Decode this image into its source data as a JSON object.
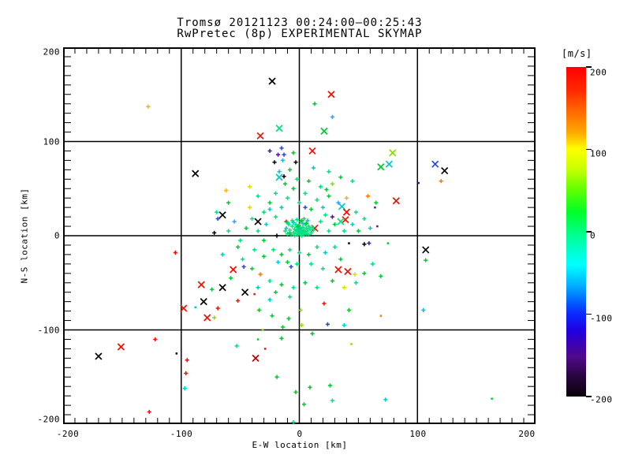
{
  "title": {
    "line1": "Tromsø 20121123 00:24:00–00:25:43",
    "line2": "RwPretec (8p) EXPERIMENTAL SKYMAP"
  },
  "axes": {
    "xlabel": "E-W location [km]",
    "ylabel": "N-S location [km]",
    "x_ticks": [
      "-200",
      "-100",
      "0",
      "100",
      "200"
    ],
    "y_ticks": [
      "200",
      "100",
      "0",
      "-100",
      "-200"
    ],
    "x_range": [
      -200,
      200
    ],
    "y_range": [
      -200,
      200
    ],
    "major_grid_km": 100,
    "minor_tick_km": 10,
    "grid": "on",
    "frame_color": "#000000",
    "background": "#ffffff"
  },
  "colorbar": {
    "unit": "[m/s]",
    "ticks": [
      "200",
      "100",
      "0",
      "-100",
      "-200"
    ],
    "tick_values": [
      200,
      100,
      0,
      -100,
      -200
    ],
    "range": [
      -200,
      200
    ],
    "gradient": [
      {
        "p": 0,
        "c": "#ff0000"
      },
      {
        "p": 7,
        "c": "#ff2800"
      },
      {
        "p": 13,
        "c": "#ff6400"
      },
      {
        "p": 20,
        "c": "#ffaa00"
      },
      {
        "p": 25,
        "c": "#ffff00"
      },
      {
        "p": 31,
        "c": "#c8ff00"
      },
      {
        "p": 37,
        "c": "#64ff00"
      },
      {
        "p": 44,
        "c": "#00ff28"
      },
      {
        "p": 50,
        "c": "#00ff82"
      },
      {
        "p": 56,
        "c": "#00ffd2"
      },
      {
        "p": 60,
        "c": "#00ffff"
      },
      {
        "p": 66,
        "c": "#00b4ff"
      },
      {
        "p": 71,
        "c": "#0064ff"
      },
      {
        "p": 75,
        "c": "#0a28ff"
      },
      {
        "p": 80,
        "c": "#2000e0"
      },
      {
        "p": 84,
        "c": "#3c00b4"
      },
      {
        "p": 88,
        "c": "#500a8c"
      },
      {
        "p": 94,
        "c": "#28053c"
      },
      {
        "p": 100,
        "c": "#0a000a"
      }
    ]
  },
  "chart_data": {
    "type": "scatter",
    "title": "Tromsø 20121123 00:24:00–00:25:43 / RwPretec (8p) EXPERIMENTAL SKYMAP",
    "xlabel": "E-W location [km]",
    "ylabel": "N-S location [km]",
    "xlim": [
      -200,
      200
    ],
    "ylim": [
      -200,
      200
    ],
    "color_unit": "m/s",
    "color_range": [
      -200,
      200
    ],
    "palette": {
      "SG": "#00e07d",
      "GR": "#00c832",
      "LG": "#8cdc00",
      "YL": "#dcdc00",
      "AM": "#ffb400",
      "OR": "#ff7800",
      "RD": "#f01000",
      "DR": "#c00000",
      "CY": "#00c8c8",
      "LB": "#32a0ff",
      "BL": "#2346e6",
      "NV": "#28288c",
      "PU": "#5a0aa0",
      "BK": "#000000"
    },
    "palette_velocity_ms": {
      "SG": 0,
      "GR": 40,
      "LG": 90,
      "YL": 110,
      "AM": 130,
      "OR": 150,
      "RD": 190,
      "DR": 200,
      "CY": -40,
      "LB": -80,
      "BL": -100,
      "NV": -140,
      "PU": -160,
      "BK": -200
    },
    "marker_legend": {
      "x": "large cross",
      "+": "small plus",
      ".": "dot"
    },
    "points": [
      [
        -128,
        137,
        "+",
        "AM"
      ],
      [
        -88,
        66,
        "x",
        "BK"
      ],
      [
        -23,
        164,
        "x",
        "BK"
      ],
      [
        27,
        150,
        "x",
        "RD"
      ],
      [
        13,
        140,
        "+",
        "GR"
      ],
      [
        28,
        126,
        "+",
        "LB"
      ],
      [
        -17,
        114,
        "x",
        "SG"
      ],
      [
        -33,
        106,
        "x",
        "RD"
      ],
      [
        21,
        111,
        "x",
        "GR"
      ],
      [
        11,
        90,
        "x",
        "RD"
      ],
      [
        -15,
        93,
        "+",
        "BL"
      ],
      [
        -25,
        90,
        "+",
        "NV"
      ],
      [
        -18,
        86,
        "+",
        "PU"
      ],
      [
        -13,
        86,
        "+",
        "BL"
      ],
      [
        -5,
        88,
        "+",
        "GR"
      ],
      [
        -21,
        78,
        "+",
        "BK"
      ],
      [
        -14,
        80,
        "+",
        "CY"
      ],
      [
        -3,
        78,
        "+",
        "BK"
      ],
      [
        -17,
        68,
        "+",
        "CY"
      ],
      [
        79,
        88,
        "x",
        "LG"
      ],
      [
        69,
        73,
        "x",
        "GR"
      ],
      [
        76,
        76,
        "x",
        "CY"
      ],
      [
        115,
        76,
        "x",
        "BL"
      ],
      [
        123,
        69,
        "x",
        "BK"
      ],
      [
        -69,
        18,
        "+",
        "BL"
      ],
      [
        -72,
        3,
        "+",
        "BK"
      ],
      [
        -105,
        -18,
        "+",
        "RD"
      ],
      [
        -83,
        -52,
        "x",
        "RD"
      ],
      [
        -74,
        -57,
        "+",
        "GR"
      ],
      [
        101,
        56,
        ".",
        "PU"
      ],
      [
        120,
        58,
        "+",
        "OR"
      ],
      [
        82,
        37,
        "x",
        "RD"
      ],
      [
        75,
        -8,
        ".",
        "GR"
      ],
      [
        107,
        -15,
        "x",
        "BK"
      ],
      [
        107,
        -26,
        "+",
        "GR"
      ],
      [
        69,
        -43,
        "+",
        "GR"
      ],
      [
        -81,
        -70,
        "x",
        "BK"
      ],
      [
        -98,
        -77,
        "x",
        "RD"
      ],
      [
        -88,
        -76,
        ".",
        "CY"
      ],
      [
        -69,
        -77,
        "+",
        "RD"
      ],
      [
        -78,
        -87,
        "x",
        "RD"
      ],
      [
        -72,
        -87,
        "+",
        "LG"
      ],
      [
        -122,
        -110,
        "+",
        "RD"
      ],
      [
        -151,
        -118,
        "x",
        "RD"
      ],
      [
        -170,
        -128,
        "x",
        "BK"
      ],
      [
        -104,
        -125,
        ".",
        "BK"
      ],
      [
        -95,
        -132,
        "+",
        "RD"
      ],
      [
        -96,
        -146,
        "+",
        "RD"
      ],
      [
        -97,
        -162,
        "+",
        "CY"
      ],
      [
        -127,
        -187,
        "+",
        "RD"
      ],
      [
        -52,
        -69,
        "+",
        "RD"
      ],
      [
        -25,
        -68,
        "+",
        "CY"
      ],
      [
        -34,
        -79,
        "+",
        "GR"
      ],
      [
        -23,
        -85,
        "+",
        "GR"
      ],
      [
        -9,
        -88,
        "+",
        "GR"
      ],
      [
        1,
        -79,
        "+",
        "LG"
      ],
      [
        21,
        -72,
        "+",
        "RD"
      ],
      [
        42,
        -79,
        "+",
        "GR"
      ],
      [
        2,
        -95,
        "+",
        "LG"
      ],
      [
        24,
        -94,
        "+",
        "BL"
      ],
      [
        38,
        -95,
        "+",
        "CY"
      ],
      [
        -14,
        -97,
        "+",
        "GR"
      ],
      [
        -31,
        -100,
        ".",
        "LG"
      ],
      [
        11,
        -104,
        "+",
        "GR"
      ],
      [
        -15,
        -109,
        "+",
        "GR"
      ],
      [
        -35,
        -110,
        ".",
        "GR"
      ],
      [
        -53,
        -117,
        "+",
        "SG"
      ],
      [
        -29,
        -120,
        ".",
        "RD"
      ],
      [
        44,
        -115,
        ".",
        "LG"
      ],
      [
        -37,
        -130,
        "x",
        "DR"
      ],
      [
        -19,
        -150,
        "+",
        "GR"
      ],
      [
        -3,
        -166,
        "+",
        "GR"
      ],
      [
        9,
        -161,
        "+",
        "GR"
      ],
      [
        26,
        -159,
        "+",
        "GR"
      ],
      [
        28,
        -175,
        "+",
        "SG"
      ],
      [
        4,
        -179,
        "+",
        "GR"
      ],
      [
        -5,
        -198,
        "+",
        "SG"
      ],
      [
        69,
        -85,
        ".",
        "OR"
      ],
      [
        105,
        -79,
        "+",
        "CY"
      ],
      [
        73,
        -174,
        "+",
        "CY"
      ],
      [
        163,
        -173,
        ".",
        "GR"
      ],
      [
        -17,
        62,
        "x",
        "CY"
      ],
      [
        -13,
        63,
        "+",
        "BK"
      ],
      [
        -42,
        52,
        "+",
        "YL"
      ],
      [
        23,
        49,
        "+",
        "GR"
      ],
      [
        5,
        30,
        "+",
        "BL"
      ],
      [
        36,
        31,
        "x",
        "CY"
      ],
      [
        40,
        25,
        "x",
        "RD"
      ],
      [
        39,
        17,
        "x",
        "RD"
      ],
      [
        35,
        15,
        "x",
        "SG"
      ],
      [
        13,
        8,
        "x",
        "RD"
      ],
      [
        -35,
        15,
        "x",
        "BK"
      ],
      [
        -11,
        15,
        "+",
        "RD"
      ],
      [
        -19,
        0,
        "+",
        "BK"
      ],
      [
        64,
        30,
        ".",
        "NV"
      ],
      [
        59,
        -8,
        "+",
        "NV"
      ],
      [
        42,
        -8,
        ".",
        "BK"
      ],
      [
        55,
        -9,
        "+",
        "BK"
      ],
      [
        33,
        -36,
        "x",
        "RD"
      ],
      [
        41,
        -38,
        "x",
        "RD"
      ],
      [
        47,
        -41,
        "+",
        "YL"
      ],
      [
        -56,
        -36,
        "x",
        "RD"
      ],
      [
        -65,
        -55,
        "x",
        "BK"
      ],
      [
        -46,
        -60,
        "x",
        "BK"
      ],
      [
        -38,
        -62,
        ".",
        "RD"
      ],
      [
        -33,
        -41,
        "+",
        "OR"
      ],
      [
        -7,
        -33,
        "+",
        "BL"
      ],
      [
        -47,
        -33,
        "+",
        "BL"
      ],
      [
        28,
        20,
        "+",
        "PU"
      ],
      [
        66,
        10,
        ".",
        "PU"
      ],
      [
        -65,
        22,
        "x",
        "BK"
      ],
      [
        -10,
        2,
        "+",
        "SG"
      ],
      [
        -8,
        6,
        "+",
        "SG"
      ],
      [
        -7,
        1,
        "+",
        "SG"
      ],
      [
        -6,
        10,
        "+",
        "SG"
      ],
      [
        -5,
        3,
        "+",
        "SG"
      ],
      [
        -4,
        7,
        "+",
        "SG"
      ],
      [
        -4,
        0,
        "+",
        "SG"
      ],
      [
        -3,
        12,
        "+",
        "SG"
      ],
      [
        -3,
        5,
        "+",
        "SG"
      ],
      [
        -2,
        2,
        "+",
        "SG"
      ],
      [
        -2,
        9,
        "+",
        "SG"
      ],
      [
        -1,
        6,
        "+",
        "SG"
      ],
      [
        -1,
        1,
        "+",
        "SG"
      ],
      [
        0,
        4,
        "+",
        "SG"
      ],
      [
        0,
        11,
        "+",
        "SG"
      ],
      [
        1,
        2,
        "+",
        "SG"
      ],
      [
        1,
        8,
        "+",
        "SG"
      ],
      [
        2,
        5,
        "+",
        "SG"
      ],
      [
        2,
        0,
        "+",
        "SG"
      ],
      [
        3,
        9,
        "+",
        "SG"
      ],
      [
        3,
        3,
        "+",
        "SG"
      ],
      [
        4,
        6,
        "+",
        "SG"
      ],
      [
        4,
        1,
        "+",
        "SG"
      ],
      [
        5,
        12,
        "+",
        "SG"
      ],
      [
        5,
        4,
        "+",
        "SG"
      ],
      [
        6,
        8,
        "+",
        "SG"
      ],
      [
        6,
        2,
        "+",
        "SG"
      ],
      [
        7,
        5,
        "+",
        "SG"
      ],
      [
        8,
        10,
        "+",
        "SG"
      ],
      [
        8,
        1,
        "+",
        "SG"
      ],
      [
        9,
        7,
        "+",
        "SG"
      ],
      [
        -9,
        12,
        "+",
        "SG"
      ],
      [
        -6,
        16,
        "+",
        "SG"
      ],
      [
        -2,
        17,
        "+",
        "SG"
      ],
      [
        1,
        15,
        "+",
        "SG"
      ],
      [
        4,
        18,
        "+",
        "SG"
      ],
      [
        -11,
        8,
        "+",
        "CY"
      ],
      [
        -5,
        14,
        "+",
        "CY"
      ],
      [
        0,
        7,
        "+",
        "CY"
      ],
      [
        3,
        13,
        "+",
        "CY"
      ],
      [
        7,
        16,
        "+",
        "CY"
      ],
      [
        -8,
        3,
        "+",
        "GR"
      ],
      [
        -1,
        10,
        "+",
        "GR"
      ],
      [
        2,
        16,
        "+",
        "GR"
      ],
      [
        6,
        13,
        "+",
        "GR"
      ],
      [
        10,
        3,
        "+",
        "SG"
      ],
      [
        11,
        9,
        "+",
        "SG"
      ],
      [
        -12,
        5,
        "+",
        "SG"
      ],
      [
        -10,
        14,
        "+",
        "SG"
      ],
      [
        12,
        6,
        "+",
        "SG"
      ],
      [
        -30,
        25,
        "+",
        "SG"
      ],
      [
        -25,
        35,
        "+",
        "GR"
      ],
      [
        -20,
        45,
        "+",
        "SG"
      ],
      [
        -15,
        30,
        "+",
        "CY"
      ],
      [
        -10,
        40,
        "+",
        "SG"
      ],
      [
        -5,
        50,
        "+",
        "GR"
      ],
      [
        0,
        35,
        "+",
        "SG"
      ],
      [
        5,
        45,
        "+",
        "SG"
      ],
      [
        10,
        28,
        "+",
        "GR"
      ],
      [
        15,
        38,
        "+",
        "SG"
      ],
      [
        20,
        30,
        "+",
        "CY"
      ],
      [
        25,
        42,
        "+",
        "GR"
      ],
      [
        -35,
        5,
        "+",
        "SG"
      ],
      [
        -30,
        -5,
        "+",
        "GR"
      ],
      [
        -28,
        12,
        "+",
        "CY"
      ],
      [
        -40,
        18,
        "+",
        "SG"
      ],
      [
        -45,
        8,
        "+",
        "GR"
      ],
      [
        -50,
        -5,
        "+",
        "SG"
      ],
      [
        -38,
        -15,
        "+",
        "SG"
      ],
      [
        -30,
        -22,
        "+",
        "GR"
      ],
      [
        -22,
        -15,
        "+",
        "SG"
      ],
      [
        -15,
        -20,
        "+",
        "GR"
      ],
      [
        -8,
        -15,
        "+",
        "SG"
      ],
      [
        0,
        -18,
        "+",
        "SG"
      ],
      [
        8,
        -20,
        "+",
        "GR"
      ],
      [
        15,
        -12,
        "+",
        "SG"
      ],
      [
        22,
        -18,
        "+",
        "CY"
      ],
      [
        30,
        -12,
        "+",
        "SG"
      ],
      [
        35,
        -25,
        "+",
        "GR"
      ],
      [
        25,
        5,
        "+",
        "SG"
      ],
      [
        30,
        12,
        "+",
        "GR"
      ],
      [
        38,
        5,
        "+",
        "SG"
      ],
      [
        45,
        12,
        "+",
        "CY"
      ],
      [
        50,
        5,
        "+",
        "GR"
      ],
      [
        18,
        15,
        "+",
        "SG"
      ],
      [
        22,
        22,
        "+",
        "SG"
      ],
      [
        -20,
        20,
        "+",
        "SG"
      ],
      [
        -25,
        28,
        "+",
        "CY"
      ],
      [
        48,
        25,
        "+",
        "SG"
      ],
      [
        -18,
        -28,
        "+",
        "CY"
      ],
      [
        -10,
        -28,
        "+",
        "GR"
      ],
      [
        -2,
        -30,
        "+",
        "SG"
      ],
      [
        10,
        -30,
        "+",
        "SG"
      ],
      [
        20,
        -35,
        "+",
        "SG"
      ],
      [
        -42,
        30,
        "+",
        "YL"
      ],
      [
        -35,
        42,
        "+",
        "SG"
      ],
      [
        33,
        35,
        "+",
        "LB"
      ],
      [
        40,
        40,
        "+",
        "AM"
      ],
      [
        -55,
        15,
        "+",
        "LB"
      ],
      [
        -60,
        5,
        "+",
        "SG"
      ],
      [
        -52,
        -12,
        "+",
        "GR"
      ],
      [
        55,
        18,
        "+",
        "SG"
      ],
      [
        60,
        8,
        "+",
        "CY"
      ],
      [
        -12,
        55,
        "+",
        "GR"
      ],
      [
        -2,
        60,
        "+",
        "SG"
      ],
      [
        8,
        58,
        "+",
        "GR"
      ],
      [
        18,
        52,
        "+",
        "SG"
      ],
      [
        28,
        55,
        "+",
        "LG"
      ],
      [
        -48,
        -25,
        "+",
        "SG"
      ],
      [
        -40,
        -35,
        "+",
        "GR"
      ],
      [
        -60,
        35,
        "+",
        "GR"
      ],
      [
        -70,
        25,
        "+",
        "SG"
      ],
      [
        -65,
        -20,
        "+",
        "CY"
      ],
      [
        -58,
        -45,
        "+",
        "GR"
      ],
      [
        48,
        -50,
        "+",
        "SG"
      ],
      [
        55,
        -40,
        "+",
        "GR"
      ],
      [
        62,
        -30,
        "+",
        "SG"
      ],
      [
        -25,
        -48,
        "+",
        "SG"
      ],
      [
        -15,
        -52,
        "+",
        "GR"
      ],
      [
        -5,
        -55,
        "+",
        "SG"
      ],
      [
        5,
        -50,
        "+",
        "GR"
      ],
      [
        15,
        -55,
        "+",
        "SG"
      ],
      [
        28,
        -48,
        "+",
        "GR"
      ],
      [
        38,
        -55,
        "+",
        "YL"
      ],
      [
        -35,
        -55,
        "+",
        "CY"
      ],
      [
        -20,
        -60,
        "+",
        "GR"
      ],
      [
        -8,
        -65,
        "+",
        "SG"
      ],
      [
        58,
        42,
        "+",
        "OR"
      ],
      [
        65,
        35,
        "+",
        "GR"
      ],
      [
        -62,
        48,
        "+",
        "AM"
      ],
      [
        35,
        62,
        "+",
        "GR"
      ],
      [
        25,
        68,
        "+",
        "SG"
      ],
      [
        12,
        72,
        "+",
        "CY"
      ],
      [
        -8,
        70,
        "+",
        "GR"
      ],
      [
        45,
        58,
        "+",
        "SG"
      ]
    ]
  }
}
